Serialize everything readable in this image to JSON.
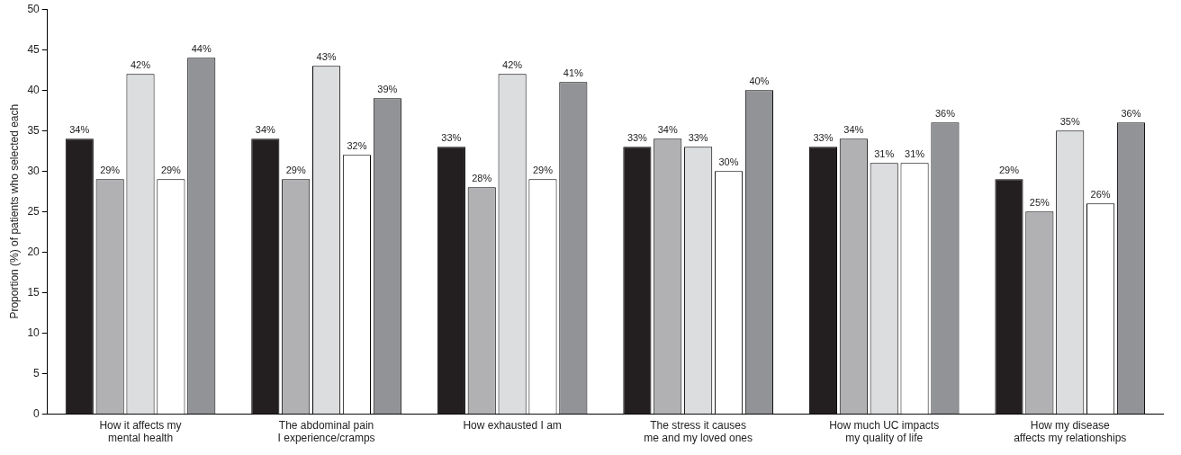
{
  "chart_data": {
    "type": "bar",
    "ylabel": "Proportion (%) of patients who selected each",
    "categories": [
      "How it affects my mental health",
      "The abdominal pain I experience/cramps",
      "How exhausted I am",
      "The stress it causes me and my loved ones",
      "How much UC impacts my quality of life",
      "How my disease affects my relationships"
    ],
    "series": [
      {
        "color": "#231f20",
        "values": [
          34,
          34,
          33,
          33,
          33,
          29
        ],
        "value_labels": [
          "34%",
          "34%",
          "33%",
          "33%",
          "33%",
          "29%"
        ]
      },
      {
        "color": "#b1b1b3",
        "values": [
          29,
          29,
          28,
          34,
          34,
          25
        ],
        "value_labels": [
          "29%",
          "29%",
          "28%",
          "34%",
          "34%",
          "25%"
        ]
      },
      {
        "color": "#dcdddf",
        "values": [
          42,
          43,
          42,
          33,
          31,
          35
        ],
        "value_labels": [
          "42%",
          "43%",
          "42%",
          "33%",
          "31%",
          "35%"
        ]
      },
      {
        "color": "#ffffff",
        "values": [
          29,
          32,
          29,
          30,
          31,
          26
        ],
        "value_labels": [
          "29%",
          "32%",
          "29%",
          "30%",
          "31%",
          "26%"
        ]
      },
      {
        "color": "#929397",
        "values": [
          44,
          39,
          41,
          40,
          36,
          36
        ],
        "value_labels": [
          "44%",
          "39%",
          "41%",
          "40%",
          "36%",
          "36%"
        ]
      }
    ],
    "ylim": [
      0,
      50
    ],
    "yticks": [
      0,
      5,
      10,
      15,
      20,
      25,
      30,
      35,
      40,
      45,
      50
    ],
    "grid": false,
    "legend": false
  }
}
